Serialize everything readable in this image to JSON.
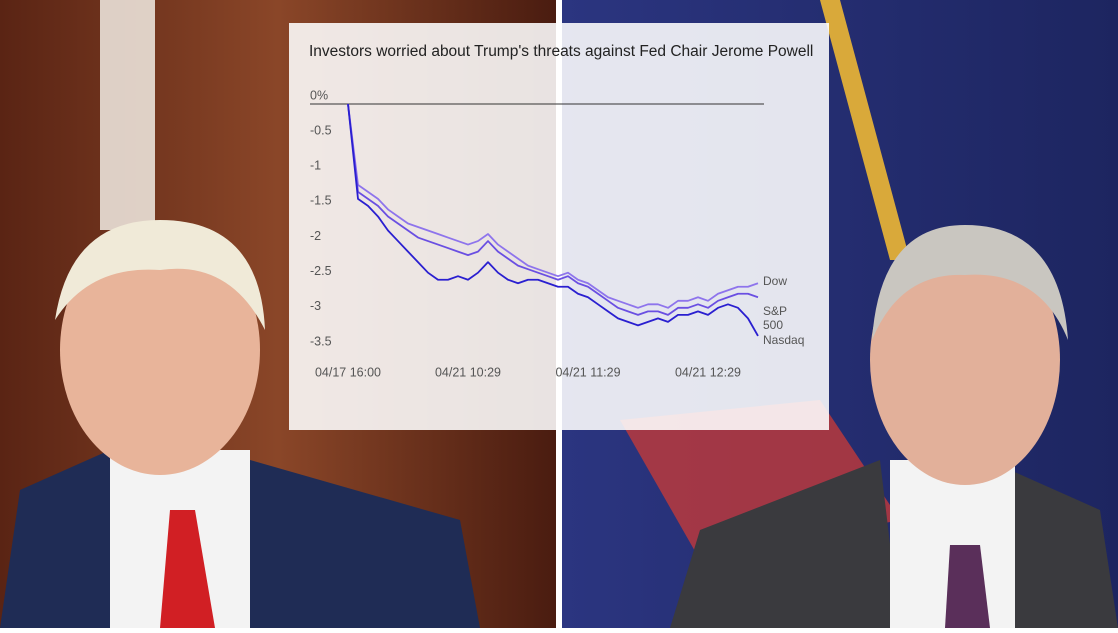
{
  "chart_data": {
    "type": "line",
    "title": "Investors worried about Trump's threats against Fed Chair Jerome Powell",
    "categories": [
      "04/17 16:00",
      null,
      null,
      null,
      null,
      null,
      null,
      null,
      null,
      null,
      null,
      null,
      "04/21 10:29",
      null,
      null,
      null,
      null,
      null,
      null,
      null,
      null,
      null,
      null,
      null,
      "04/21 11:29",
      null,
      null,
      null,
      null,
      null,
      null,
      null,
      null,
      null,
      null,
      null,
      "04/21 12:29",
      null,
      null,
      null,
      null,
      null
    ],
    "series": [
      {
        "name": "Dow",
        "color": "#8e74ec",
        "values": [
          0,
          -1.15,
          -1.25,
          -1.35,
          -1.5,
          -1.6,
          -1.7,
          -1.75,
          -1.8,
          -1.85,
          -1.9,
          -1.95,
          -2.0,
          -1.95,
          -1.85,
          -2.0,
          -2.1,
          -2.2,
          -2.3,
          -2.35,
          -2.4,
          -2.45,
          -2.4,
          -2.5,
          -2.55,
          -2.65,
          -2.75,
          -2.8,
          -2.85,
          -2.9,
          -2.85,
          -2.85,
          -2.9,
          -2.8,
          -2.8,
          -2.75,
          -2.8,
          -2.7,
          -2.65,
          -2.6,
          -2.6,
          -2.55
        ]
      },
      {
        "name": "S&P 500",
        "color": "#6a4fe2",
        "values": [
          0,
          -1.25,
          -1.35,
          -1.45,
          -1.6,
          -1.7,
          -1.8,
          -1.9,
          -1.95,
          -2.0,
          -2.05,
          -2.1,
          -2.15,
          -2.1,
          -1.95,
          -2.1,
          -2.2,
          -2.3,
          -2.35,
          -2.4,
          -2.45,
          -2.5,
          -2.45,
          -2.55,
          -2.6,
          -2.7,
          -2.8,
          -2.9,
          -2.95,
          -3.0,
          -2.95,
          -2.95,
          -3.0,
          -2.9,
          -2.9,
          -2.85,
          -2.9,
          -2.8,
          -2.75,
          -2.7,
          -2.7,
          -2.75
        ]
      },
      {
        "name": "Nasdaq",
        "color": "#2a1fd0",
        "values": [
          0,
          -1.35,
          -1.45,
          -1.6,
          -1.8,
          -1.95,
          -2.1,
          -2.25,
          -2.4,
          -2.5,
          -2.5,
          -2.45,
          -2.5,
          -2.4,
          -2.25,
          -2.4,
          -2.5,
          -2.55,
          -2.5,
          -2.5,
          -2.55,
          -2.6,
          -2.6,
          -2.7,
          -2.75,
          -2.85,
          -2.95,
          -3.05,
          -3.1,
          -3.15,
          -3.1,
          -3.05,
          -3.1,
          -3.0,
          -3.0,
          -2.95,
          -3.0,
          -2.9,
          -2.85,
          -2.9,
          -3.05,
          -3.3
        ]
      }
    ],
    "ylim": [
      -3.5,
      0
    ],
    "yticks": [
      {
        "value": 0,
        "label": "0%"
      },
      -0.5,
      -1,
      -1.5,
      -2,
      -2.5,
      -3,
      -3.5
    ],
    "grid": false
  }
}
